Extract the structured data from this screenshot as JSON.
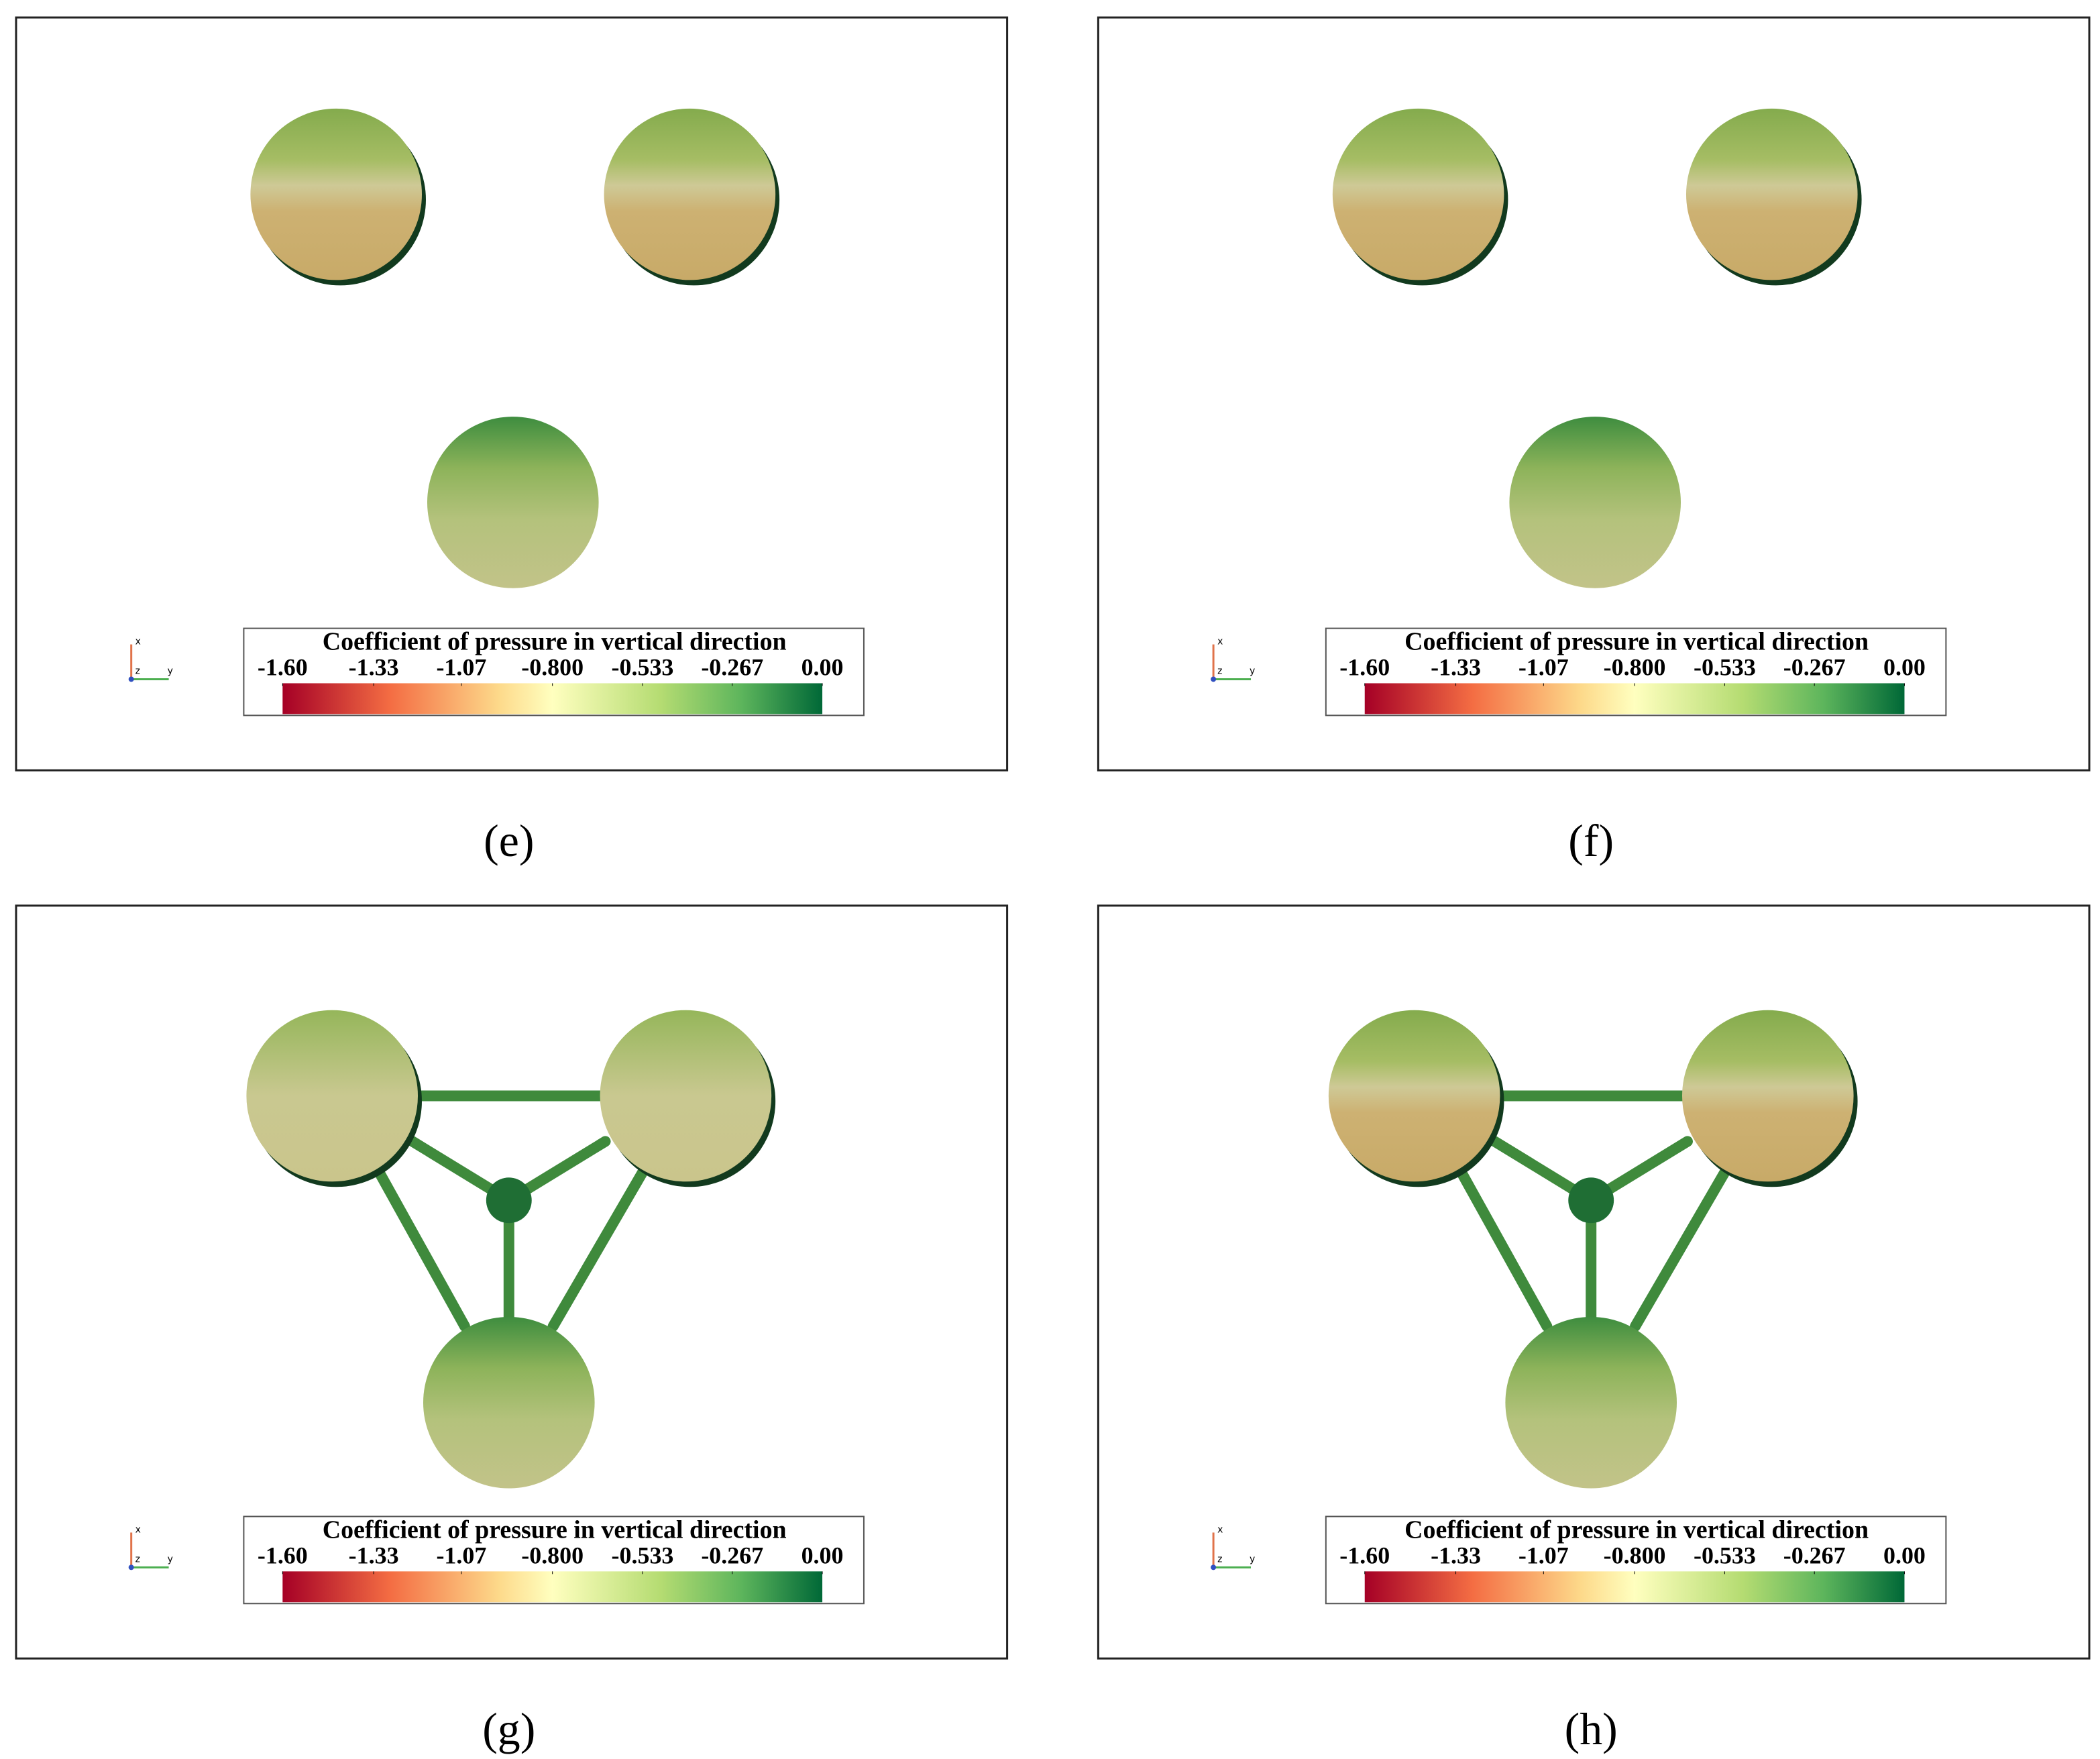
{
  "panels": [
    {
      "label": "(e)",
      "axes": {
        "x": "x",
        "y": "y",
        "z": "z"
      },
      "legend": {
        "title": "Coefficient of pressure in vertical direction",
        "range": [
          -1.6,
          0
        ],
        "ticks": [
          {
            "value": -1.6,
            "label": "-1.60"
          },
          {
            "value": -1.33,
            "label": "-1.33"
          },
          {
            "value": -1.07,
            "label": "-1.07"
          },
          {
            "value": -0.8,
            "label": "-0.800"
          },
          {
            "value": -0.533,
            "label": "-0.533"
          },
          {
            "value": -0.267,
            "label": "-0.267"
          },
          {
            "value": 0,
            "label": "0.00"
          }
        ]
      }
    },
    {
      "label": "(f)",
      "axes": {
        "x": "x",
        "y": "y",
        "z": "z"
      },
      "legend": {
        "title": "Coefficient of pressure in vertical direction",
        "range": [
          -1.6,
          0
        ],
        "ticks": [
          {
            "value": -1.6,
            "label": "-1.60"
          },
          {
            "value": -1.33,
            "label": "-1.33"
          },
          {
            "value": -1.07,
            "label": "-1.07"
          },
          {
            "value": -0.8,
            "label": "-0.800"
          },
          {
            "value": -0.533,
            "label": "-0.533"
          },
          {
            "value": -0.267,
            "label": "-0.267"
          },
          {
            "value": 0,
            "label": "0.00"
          }
        ]
      }
    },
    {
      "label": "(g)",
      "axes": {
        "x": "x",
        "y": "y",
        "z": "z"
      },
      "legend": {
        "title": "Coefficient of pressure in vertical direction",
        "range": [
          -1.6,
          0
        ],
        "ticks": [
          {
            "value": -1.6,
            "label": "-1.60"
          },
          {
            "value": -1.33,
            "label": "-1.33"
          },
          {
            "value": -1.07,
            "label": "-1.07"
          },
          {
            "value": -0.8,
            "label": "-0.800"
          },
          {
            "value": -0.533,
            "label": "-0.533"
          },
          {
            "value": -0.267,
            "label": "-0.267"
          },
          {
            "value": 0,
            "label": "0.00"
          }
        ]
      }
    },
    {
      "label": "(h)",
      "axes": {
        "x": "x",
        "y": "y",
        "z": "z"
      },
      "legend": {
        "title": "Coefficient of pressure in vertical direction",
        "range": [
          -1.6,
          0
        ],
        "ticks": [
          {
            "value": -1.6,
            "label": "-1.60"
          },
          {
            "value": -1.33,
            "label": "-1.33"
          },
          {
            "value": -1.07,
            "label": "-1.07"
          },
          {
            "value": -0.8,
            "label": "-0.800"
          },
          {
            "value": -0.533,
            "label": "-0.533"
          },
          {
            "value": -0.267,
            "label": "-0.267"
          },
          {
            "value": 0,
            "label": "0.00"
          }
        ]
      }
    }
  ]
}
